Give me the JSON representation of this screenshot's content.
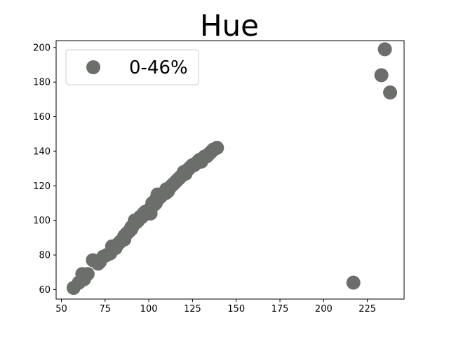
{
  "chart_data": {
    "type": "scatter",
    "title": "Hue",
    "xlabel": "",
    "ylabel": "",
    "xlim": [
      47,
      246
    ],
    "ylim": [
      54.5,
      204
    ],
    "xticks": [
      50,
      75,
      100,
      125,
      150,
      175,
      200,
      225
    ],
    "yticks": [
      60,
      80,
      100,
      120,
      140,
      160,
      180,
      200
    ],
    "grid": false,
    "legend_position": "top-left",
    "series": [
      {
        "name": "0-46%",
        "color": "#6b6e6b",
        "points": [
          [
            57,
            61
          ],
          [
            60,
            64
          ],
          [
            63,
            66
          ],
          [
            62,
            69
          ],
          [
            65,
            69
          ],
          [
            68,
            77
          ],
          [
            71,
            75
          ],
          [
            72,
            76
          ],
          [
            74,
            79
          ],
          [
            76,
            80
          ],
          [
            78,
            81
          ],
          [
            79,
            85
          ],
          [
            80,
            84
          ],
          [
            81,
            84
          ],
          [
            82,
            86
          ],
          [
            83,
            87
          ],
          [
            84,
            88
          ],
          [
            85,
            89
          ],
          [
            86,
            89
          ],
          [
            86,
            91
          ],
          [
            87,
            92
          ],
          [
            88,
            93
          ],
          [
            89,
            94
          ],
          [
            90,
            95
          ],
          [
            90,
            96
          ],
          [
            91,
            97
          ],
          [
            92,
            100
          ],
          [
            93,
            99
          ],
          [
            94,
            100
          ],
          [
            95,
            102
          ],
          [
            96,
            102
          ],
          [
            97,
            104
          ],
          [
            98,
            105
          ],
          [
            99,
            104
          ],
          [
            100,
            106
          ],
          [
            101,
            107
          ],
          [
            101,
            104
          ],
          [
            102,
            110
          ],
          [
            103,
            109
          ],
          [
            104,
            110
          ],
          [
            104,
            112
          ],
          [
            105,
            115
          ],
          [
            106,
            113
          ],
          [
            107,
            114
          ],
          [
            108,
            115
          ],
          [
            109,
            116
          ],
          [
            110,
            118
          ],
          [
            110,
            116
          ],
          [
            111,
            117
          ],
          [
            112,
            119
          ],
          [
            113,
            120
          ],
          [
            114,
            121
          ],
          [
            115,
            122
          ],
          [
            116,
            123
          ],
          [
            117,
            124
          ],
          [
            118,
            125
          ],
          [
            119,
            126
          ],
          [
            120,
            128
          ],
          [
            121,
            127
          ],
          [
            122,
            129
          ],
          [
            123,
            130
          ],
          [
            124,
            131
          ],
          [
            125,
            132
          ],
          [
            126,
            132
          ],
          [
            127,
            133
          ],
          [
            128,
            134
          ],
          [
            129,
            135
          ],
          [
            130,
            134
          ],
          [
            131,
            136
          ],
          [
            132,
            137
          ],
          [
            133,
            137
          ],
          [
            134,
            138
          ],
          [
            135,
            139
          ],
          [
            136,
            140
          ],
          [
            137,
            141
          ],
          [
            139,
            142
          ],
          [
            217,
            64
          ],
          [
            233,
            184
          ],
          [
            235,
            199
          ],
          [
            238,
            174
          ]
        ]
      }
    ]
  }
}
